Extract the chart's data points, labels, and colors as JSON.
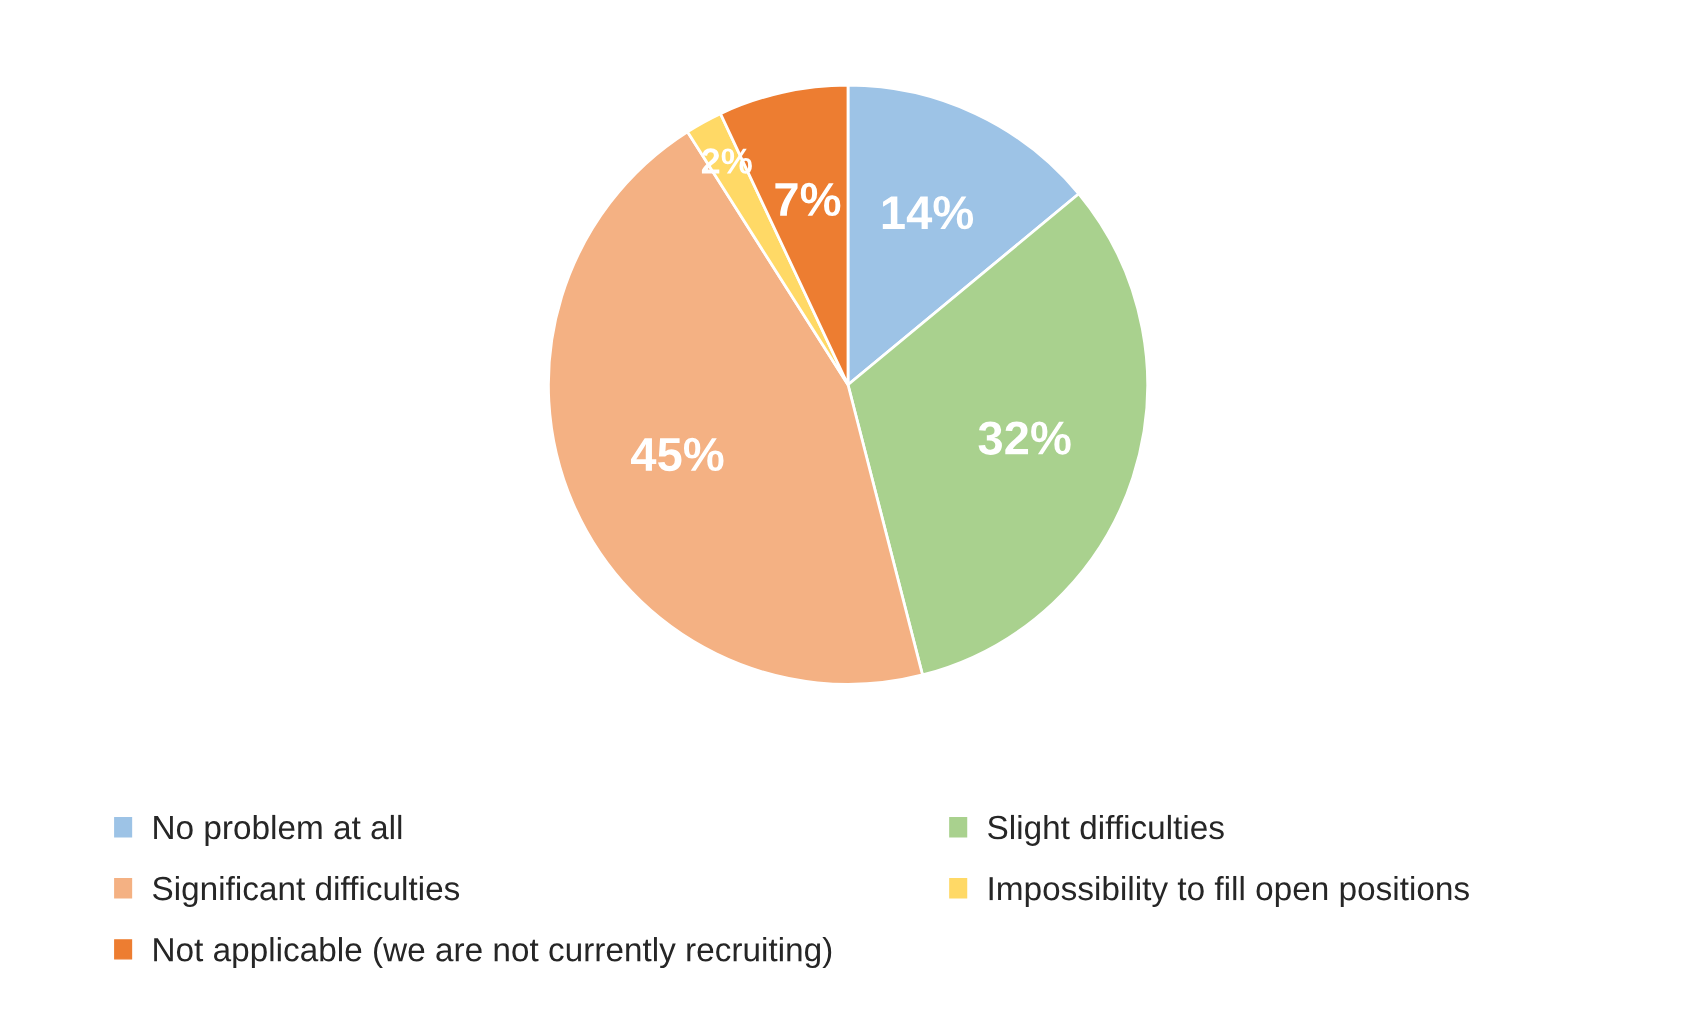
{
  "chart_data": {
    "type": "pie",
    "categories": [
      "No problem at all",
      "Slight difficulties",
      "Significant difficulties",
      "Impossibility to fill open positions",
      "Not applicable (we are not currently recruiting)"
    ],
    "values": [
      14,
      32,
      45,
      2,
      7
    ],
    "value_labels": [
      "14%",
      "32%",
      "45%",
      "2%",
      "7%"
    ],
    "colors": [
      "#9dc3e6",
      "#a9d18e",
      "#f4b183",
      "#ffd966",
      "#ed7d31"
    ],
    "legend": "bottom"
  }
}
